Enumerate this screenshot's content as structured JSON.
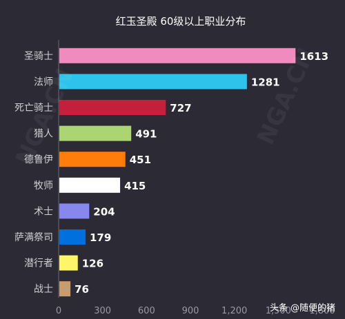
{
  "chart_data": {
    "type": "bar",
    "orientation": "horizontal",
    "title": "红玉圣殿 60级以上职业分布",
    "xlabel": "",
    "ylabel": "",
    "categories": [
      "圣骑士",
      "法师",
      "死亡骑士",
      "猎人",
      "德鲁伊",
      "牧师",
      "术士",
      "萨满祭司",
      "潜行者",
      "战士"
    ],
    "values": [
      1613,
      1281,
      727,
      491,
      451,
      415,
      204,
      179,
      126,
      76
    ],
    "colors": [
      "#f08bbd",
      "#2ec3ea",
      "#c41f3b",
      "#abd473",
      "#ff7d0a",
      "#ffffff",
      "#8787ed",
      "#0070de",
      "#fff569",
      "#c79c6e"
    ],
    "xlim": [
      0,
      1800
    ],
    "xticks": [
      0,
      300,
      600,
      900,
      1200,
      1500,
      1800
    ],
    "xtick_labels": [
      "0",
      "300",
      "600",
      "900",
      "1,200",
      "1,500",
      "1,800"
    ],
    "grid": false,
    "legend": "none"
  },
  "credit": "头条 @随便的猪"
}
